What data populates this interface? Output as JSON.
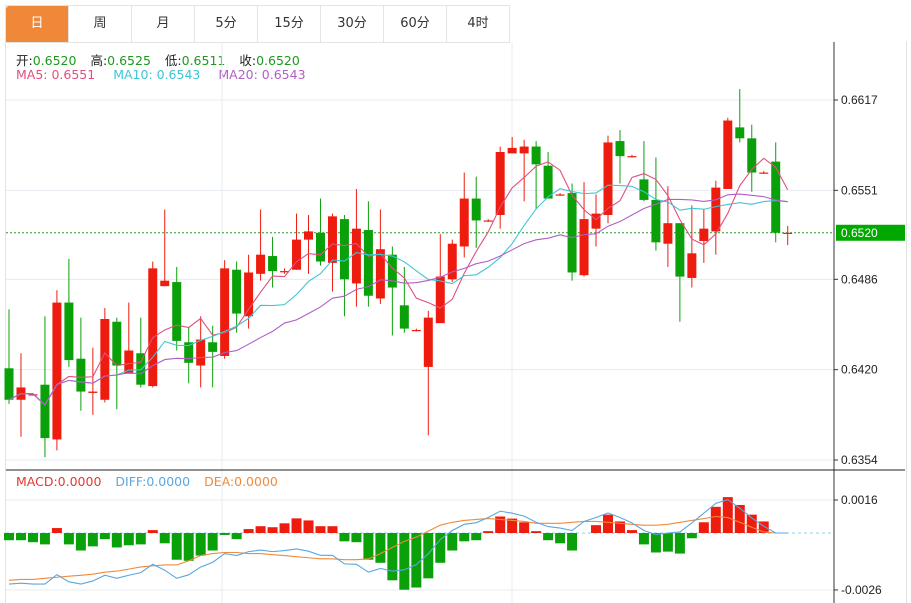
{
  "tabs": [
    "日",
    "周",
    "月",
    "5分",
    "15分",
    "30分",
    "60分",
    "4时"
  ],
  "active_tab": 0,
  "ohlc_info": {
    "open_label": "开:",
    "open": "0.6520",
    "high_label": "高:",
    "high": "0.6525",
    "low_label": "低:",
    "low": "0.6511",
    "close_label": "收:",
    "close": "0.6520"
  },
  "ma_info": {
    "ma5": "MA5: 0.6551",
    "ma10": "MA10: 0.6543",
    "ma20": "MA20: 0.6543"
  },
  "macd_info": {
    "macd": "MACD:0.0000",
    "diff": "DIFF:0.0000",
    "dea": "DEA:0.0000"
  },
  "colors": {
    "up": "#ee1c0e",
    "down": "#0aa00a",
    "ma5": "#e0507f",
    "ma10": "#3fc5d6",
    "ma20": "#b05fc6",
    "diff": "#5aa7e0",
    "dea": "#f08a3c",
    "accent": "#f0883a",
    "last_price_bg": "#00a800"
  },
  "chart_data": [
    {
      "type": "candlestick",
      "title": "K线",
      "y_ticks": [
        "0.6617",
        "0.6551",
        "0.6486",
        "0.6420",
        "0.6354"
      ],
      "ylim": [
        0.6347,
        0.664
      ],
      "last_price": "0.6520",
      "ma_periods": [
        5,
        10,
        20
      ],
      "ohlc": [
        [
          0.6421,
          0.6464,
          0.6395,
          0.6398
        ],
        [
          0.6398,
          0.6432,
          0.6371,
          0.6407
        ],
        [
          0.6402,
          0.6403,
          0.6401,
          0.6402
        ],
        [
          0.6409,
          0.6459,
          0.6356,
          0.637
        ],
        [
          0.6369,
          0.6478,
          0.6361,
          0.6469
        ],
        [
          0.6469,
          0.6501,
          0.6422,
          0.6427
        ],
        [
          0.6428,
          0.6458,
          0.639,
          0.6404
        ],
        [
          0.6403,
          0.6436,
          0.6387,
          0.6404
        ],
        [
          0.6398,
          0.6465,
          0.6396,
          0.6457
        ],
        [
          0.6455,
          0.6458,
          0.6391,
          0.6423
        ],
        [
          0.6417,
          0.6469,
          0.6417,
          0.6434
        ],
        [
          0.6432,
          0.6458,
          0.6407,
          0.6409
        ],
        [
          0.6408,
          0.6499,
          0.6407,
          0.6494
        ],
        [
          0.6481,
          0.6537,
          0.6481,
          0.6485
        ],
        [
          0.6484,
          0.6495,
          0.6434,
          0.6441
        ],
        [
          0.644,
          0.6451,
          0.641,
          0.6425
        ],
        [
          0.6423,
          0.6459,
          0.6407,
          0.6442
        ],
        [
          0.644,
          0.6452,
          0.6407,
          0.6433
        ],
        [
          0.643,
          0.65,
          0.6428,
          0.6494
        ],
        [
          0.6493,
          0.6499,
          0.6447,
          0.6461
        ],
        [
          0.6459,
          0.6504,
          0.645,
          0.6491
        ],
        [
          0.649,
          0.6537,
          0.6485,
          0.6504
        ],
        [
          0.6503,
          0.6517,
          0.648,
          0.6492
        ],
        [
          0.6492,
          0.6494,
          0.649,
          0.6492
        ],
        [
          0.6493,
          0.6534,
          0.6493,
          0.6515
        ],
        [
          0.6515,
          0.6533,
          0.649,
          0.6521
        ],
        [
          0.652,
          0.6545,
          0.6496,
          0.6499
        ],
        [
          0.6498,
          0.6534,
          0.6477,
          0.6532
        ],
        [
          0.653,
          0.6533,
          0.6459,
          0.6486
        ],
        [
          0.6483,
          0.6552,
          0.6466,
          0.6523
        ],
        [
          0.6522,
          0.6543,
          0.6466,
          0.6474
        ],
        [
          0.6472,
          0.6537,
          0.6468,
          0.6508
        ],
        [
          0.6504,
          0.651,
          0.6445,
          0.648
        ],
        [
          0.6467,
          0.6495,
          0.6447,
          0.645
        ],
        [
          0.6449,
          0.645,
          0.6448,
          0.6449
        ],
        [
          0.6422,
          0.6463,
          0.6372,
          0.6458
        ],
        [
          0.6454,
          0.6519,
          0.6454,
          0.6488
        ],
        [
          0.6486,
          0.6515,
          0.6484,
          0.6512
        ],
        [
          0.651,
          0.6564,
          0.6502,
          0.6545
        ],
        [
          0.6545,
          0.6561,
          0.6509,
          0.6529
        ],
        [
          0.6529,
          0.653,
          0.6528,
          0.6529
        ],
        [
          0.6533,
          0.6583,
          0.6523,
          0.6579
        ],
        [
          0.6578,
          0.659,
          0.6578,
          0.6582
        ],
        [
          0.6578,
          0.6588,
          0.6543,
          0.6583
        ],
        [
          0.6583,
          0.6587,
          0.6537,
          0.657
        ],
        [
          0.6569,
          0.6579,
          0.6545,
          0.6545
        ],
        [
          0.6548,
          0.6549,
          0.6547,
          0.6548
        ],
        [
          0.6549,
          0.6556,
          0.6485,
          0.6491
        ],
        [
          0.6489,
          0.6557,
          0.6488,
          0.653
        ],
        [
          0.6523,
          0.6548,
          0.651,
          0.6534
        ],
        [
          0.6533,
          0.6591,
          0.6527,
          0.6586
        ],
        [
          0.6587,
          0.6595,
          0.6556,
          0.6576
        ],
        [
          0.6576,
          0.6577,
          0.6575,
          0.6576
        ],
        [
          0.6559,
          0.6587,
          0.6543,
          0.6544
        ],
        [
          0.6544,
          0.6575,
          0.6507,
          0.6513
        ],
        [
          0.6512,
          0.6554,
          0.6495,
          0.6527
        ],
        [
          0.6527,
          0.6527,
          0.6455,
          0.6488
        ],
        [
          0.6487,
          0.654,
          0.648,
          0.6505
        ],
        [
          0.6514,
          0.6537,
          0.6498,
          0.6523
        ],
        [
          0.6521,
          0.6558,
          0.6504,
          0.6553
        ],
        [
          0.6552,
          0.6604,
          0.6552,
          0.6602
        ],
        [
          0.6597,
          0.6625,
          0.6586,
          0.6589
        ],
        [
          0.6589,
          0.6599,
          0.655,
          0.6564
        ],
        [
          0.6564,
          0.6565,
          0.6563,
          0.6564
        ],
        [
          0.6572,
          0.6586,
          0.6513,
          0.652
        ],
        [
          0.652,
          0.6525,
          0.6511,
          0.652
        ]
      ]
    },
    {
      "type": "bar",
      "title": "MACD",
      "y_ticks": [
        "0.0016",
        "-0.0026"
      ],
      "ylim": [
        -0.0026,
        0.0016
      ],
      "macd": [
        -0.00033,
        -0.00033,
        -0.00042,
        -0.00052,
        0.00024,
        -0.00052,
        -0.0008,
        -0.00061,
        -0.00028,
        -0.00066,
        -0.00056,
        -0.00052,
        0.00014,
        -0.00047,
        -0.00122,
        -0.00127,
        -0.00103,
        -0.0008,
        -9e-05,
        -0.00028,
        0.00019,
        0.00033,
        0.00028,
        0.00047,
        0.00071,
        0.00061,
        0.00033,
        0.00033,
        -0.00038,
        -0.00042,
        -0.00122,
        -0.00136,
        -0.00216,
        -0.00259,
        -0.00249,
        -0.00207,
        -0.00136,
        -0.0008,
        -0.00038,
        -0.00033,
        9e-05,
        0.0008,
        0.0007,
        0.00052,
        9e-05,
        -0.00033,
        -0.00047,
        -0.0008,
        0,
        0.00038,
        0.00089,
        0.00056,
        0.00014,
        -0.00052,
        -0.00089,
        -0.00085,
        -0.00094,
        -0.00024,
        0.00052,
        0.00127,
        0.00174,
        0.00136,
        0.00089,
        0.00056,
        0,
        0
      ],
      "dea": [
        -0.00216,
        -0.00212,
        -0.00212,
        -0.00207,
        -0.00202,
        -0.00197,
        -0.00193,
        -0.00188,
        -0.00179,
        -0.00174,
        -0.00165,
        -0.00155,
        -0.0015,
        -0.00146,
        -0.00146,
        -0.00127,
        -0.00103,
        -0.00094,
        -0.00089,
        -0.00089,
        -0.00094,
        -0.00094,
        -0.00099,
        -0.00103,
        -0.00108,
        -0.00113,
        -0.00118,
        -0.00118,
        -0.00122,
        -0.00122,
        -0.00118,
        -0.00094,
        -0.00066,
        -0.00038,
        -0.00019,
        9e-05,
        0.00038,
        0.00052,
        0.00061,
        0.00066,
        0.0007,
        0.00066,
        0.00061,
        0.00056,
        0.00047,
        0.00047,
        0.00047,
        0.00052,
        0.00056,
        0.00056,
        0.00052,
        0.00047,
        0.00042,
        0.00038,
        0.00038,
        0.00042,
        0.00052,
        0.00061,
        0.0007,
        0.0008,
        0.00075,
        0.00052,
        0.00028,
        5e-05,
        0,
        0
      ],
      "diff": [
        -0.00233,
        -0.00229,
        -0.00233,
        -0.00233,
        -0.0019,
        -0.00223,
        -0.00233,
        -0.00219,
        -0.00193,
        -0.00207,
        -0.00193,
        -0.00181,
        -0.00143,
        -0.0017,
        -0.00207,
        -0.00191,
        -0.00155,
        -0.00134,
        -0.00094,
        -0.00103,
        -0.00085,
        -0.00078,
        -0.00085,
        -0.0008,
        -0.00073,
        -0.00083,
        -0.00102,
        -0.00102,
        -0.00141,
        -0.00143,
        -0.00179,
        -0.00162,
        -0.00174,
        -0.00168,
        -0.00144,
        -0.00095,
        -0.0003,
        0.00012,
        0.00042,
        0.0005,
        0.00075,
        0.00106,
        0.00096,
        0.00082,
        0.00052,
        0.00031,
        0.00024,
        0.00012,
        0.00056,
        0.00075,
        0.00097,
        0.00075,
        0.00049,
        0.00012,
        -7e-05,
        0,
        5e-05,
        0.00049,
        0.00096,
        0.00144,
        0.00162,
        0.0012,
        0.00073,
        0.00033,
        0,
        0
      ]
    }
  ]
}
